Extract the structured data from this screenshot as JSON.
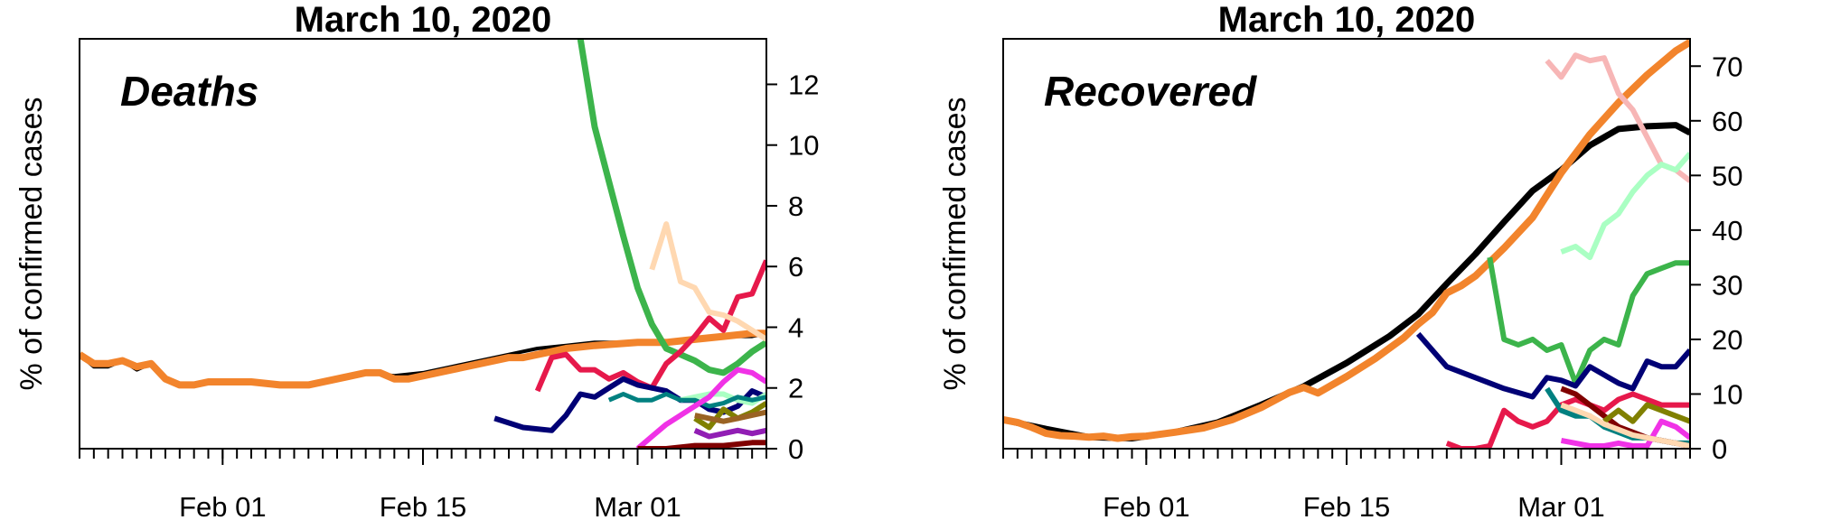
{
  "chart_data": [
    {
      "type": "line",
      "title": "March 10, 2020",
      "panel_label": "Deaths",
      "ylabel": "% of confirmed cases",
      "xlim": [
        "2020-01-22",
        "2020-03-10"
      ],
      "ylim": [
        0,
        13.5
      ],
      "y_ticks": [
        0,
        2,
        4,
        6,
        8,
        10,
        12
      ],
      "y_axis_side": "right",
      "x_tick_labels": [
        {
          "date": "2020-02-01",
          "label": "Feb 01"
        },
        {
          "date": "2020-02-15",
          "label": "Feb 15"
        },
        {
          "date": "2020-03-01",
          "label": "Mar 01"
        }
      ],
      "x_minor_ticks": "daily",
      "grid": false,
      "series": [
        {
          "color": "#000000",
          "width": 4,
          "x": [
            "2020-01-22",
            "2020-01-23",
            "2020-01-24",
            "2020-01-25",
            "2020-01-26",
            "2020-01-27",
            "2020-01-28",
            "2020-01-29",
            "2020-01-30",
            "2020-01-31",
            "2020-02-01",
            "2020-02-03",
            "2020-02-05",
            "2020-02-07",
            "2020-02-09",
            "2020-02-11",
            "2020-02-13",
            "2020-02-15",
            "2020-02-17",
            "2020-02-19",
            "2020-02-21",
            "2020-02-23",
            "2020-02-25",
            "2020-02-27",
            "2020-03-01",
            "2020-03-03",
            "2020-03-05",
            "2020-03-07",
            "2020-03-09",
            "2020-03-10"
          ],
          "y": [
            3.1,
            2.7,
            2.7,
            2.9,
            2.6,
            2.8,
            2.3,
            2.1,
            2.1,
            2.2,
            2.2,
            2.2,
            2.1,
            2.1,
            2.3,
            2.5,
            2.4,
            2.5,
            2.7,
            2.9,
            3.1,
            3.3,
            3.4,
            3.5,
            3.5,
            3.5,
            3.6,
            3.7,
            3.7,
            3.8
          ]
        },
        {
          "color": "#f2842c",
          "width": 8,
          "x": [
            "2020-01-22",
            "2020-01-23",
            "2020-01-24",
            "2020-01-25",
            "2020-01-26",
            "2020-01-27",
            "2020-01-28",
            "2020-01-29",
            "2020-01-30",
            "2020-01-31",
            "2020-02-01",
            "2020-02-03",
            "2020-02-05",
            "2020-02-07",
            "2020-02-09",
            "2020-02-11",
            "2020-02-12",
            "2020-02-13",
            "2020-02-14",
            "2020-02-15",
            "2020-02-17",
            "2020-02-19",
            "2020-02-21",
            "2020-02-22",
            "2020-02-23",
            "2020-02-24",
            "2020-02-25",
            "2020-02-27",
            "2020-03-01",
            "2020-03-03",
            "2020-03-05",
            "2020-03-07",
            "2020-03-09",
            "2020-03-10"
          ],
          "y": [
            3.1,
            2.8,
            2.8,
            2.9,
            2.7,
            2.8,
            2.3,
            2.1,
            2.1,
            2.2,
            2.2,
            2.2,
            2.1,
            2.1,
            2.3,
            2.5,
            2.5,
            2.3,
            2.3,
            2.4,
            2.6,
            2.8,
            3.0,
            3.0,
            3.1,
            3.2,
            3.3,
            3.4,
            3.5,
            3.5,
            3.6,
            3.7,
            3.8,
            3.8
          ]
        },
        {
          "color": "#3cb44b",
          "width": 7,
          "x": [
            "2020-02-26",
            "2020-02-27",
            "2020-02-28",
            "2020-02-29",
            "2020-03-01",
            "2020-03-02",
            "2020-03-03",
            "2020-03-04",
            "2020-03-05",
            "2020-03-06",
            "2020-03-07",
            "2020-03-08",
            "2020-03-09",
            "2020-03-10"
          ],
          "y": [
            13.5,
            10.6,
            8.8,
            7.0,
            5.3,
            4.1,
            3.3,
            3.1,
            2.9,
            2.6,
            2.5,
            2.8,
            3.2,
            3.5
          ]
        },
        {
          "color": "#e6194b",
          "width": 6,
          "x": [
            "2020-02-23",
            "2020-02-24",
            "2020-02-25",
            "2020-02-26",
            "2020-02-27",
            "2020-02-28",
            "2020-02-29",
            "2020-03-01",
            "2020-03-02",
            "2020-03-03",
            "2020-03-04",
            "2020-03-05",
            "2020-03-06",
            "2020-03-07",
            "2020-03-08",
            "2020-03-09",
            "2020-03-10"
          ],
          "y": [
            1.9,
            3.0,
            3.1,
            2.6,
            2.6,
            2.3,
            2.5,
            2.2,
            2.0,
            2.8,
            3.2,
            3.7,
            4.3,
            3.9,
            5.0,
            5.1,
            6.2
          ]
        },
        {
          "color": "#000075",
          "width": 6,
          "x": [
            "2020-02-20",
            "2020-02-22",
            "2020-02-24",
            "2020-02-25",
            "2020-02-26",
            "2020-02-27",
            "2020-02-28",
            "2020-02-29",
            "2020-03-01",
            "2020-03-02",
            "2020-03-03",
            "2020-03-04",
            "2020-03-05",
            "2020-03-06",
            "2020-03-07",
            "2020-03-08",
            "2020-03-09",
            "2020-03-10"
          ],
          "y": [
            1.0,
            0.7,
            0.6,
            1.1,
            1.8,
            1.7,
            2.0,
            2.3,
            2.1,
            2.0,
            1.9,
            1.6,
            1.6,
            1.3,
            1.2,
            1.4,
            1.9,
            1.7
          ]
        },
        {
          "color": "#ffd8b1",
          "width": 6,
          "x": [
            "2020-03-02",
            "2020-03-03",
            "2020-03-04",
            "2020-03-05",
            "2020-03-06",
            "2020-03-07",
            "2020-03-08",
            "2020-03-09",
            "2020-03-10"
          ],
          "y": [
            5.9,
            7.4,
            5.5,
            5.3,
            4.5,
            4.4,
            4.2,
            3.9,
            3.6
          ]
        },
        {
          "color": "#aaffc3",
          "width": 6,
          "x": [
            "2020-03-04",
            "2020-03-05",
            "2020-03-06",
            "2020-03-07",
            "2020-03-08",
            "2020-03-09",
            "2020-03-10"
          ],
          "y": [
            1.6,
            1.7,
            1.8,
            1.8,
            1.6,
            1.5,
            1.8
          ]
        },
        {
          "color": "#008080",
          "width": 5,
          "x": [
            "2020-02-28",
            "2020-02-29",
            "2020-03-01",
            "2020-03-02",
            "2020-03-03",
            "2020-03-04",
            "2020-03-05",
            "2020-03-06",
            "2020-03-07",
            "2020-03-08",
            "2020-03-09",
            "2020-03-10"
          ],
          "y": [
            1.6,
            1.8,
            1.6,
            1.6,
            1.8,
            1.6,
            1.6,
            1.4,
            1.5,
            1.7,
            1.6,
            1.7
          ]
        },
        {
          "color": "#f032e6",
          "width": 6,
          "x": [
            "2020-03-01",
            "2020-03-02",
            "2020-03-03",
            "2020-03-04",
            "2020-03-05",
            "2020-03-06",
            "2020-03-07",
            "2020-03-08",
            "2020-03-09",
            "2020-03-10"
          ],
          "y": [
            0.0,
            0.4,
            0.8,
            1.1,
            1.4,
            1.7,
            2.2,
            2.6,
            2.5,
            2.2
          ]
        },
        {
          "color": "#808000",
          "width": 6,
          "x": [
            "2020-03-05",
            "2020-03-06",
            "2020-03-07",
            "2020-03-08",
            "2020-03-09",
            "2020-03-10"
          ],
          "y": [
            1.0,
            0.7,
            1.3,
            1.0,
            1.2,
            1.5
          ]
        },
        {
          "color": "#911eb4",
          "width": 6,
          "x": [
            "2020-03-05",
            "2020-03-06",
            "2020-03-07",
            "2020-03-08",
            "2020-03-09",
            "2020-03-10"
          ],
          "y": [
            0.6,
            0.4,
            0.5,
            0.6,
            0.5,
            0.6
          ]
        },
        {
          "color": "#9a6324",
          "width": 6,
          "x": [
            "2020-03-05",
            "2020-03-06",
            "2020-03-07",
            "2020-03-08",
            "2020-03-09",
            "2020-03-10"
          ],
          "y": [
            1.1,
            1.0,
            0.9,
            1.0,
            1.1,
            1.2
          ]
        },
        {
          "color": "#800000",
          "width": 6,
          "x": [
            "2020-03-01",
            "2020-03-03",
            "2020-03-05",
            "2020-03-07",
            "2020-03-09",
            "2020-03-10"
          ],
          "y": [
            0.0,
            0.0,
            0.1,
            0.1,
            0.2,
            0.2
          ]
        }
      ]
    },
    {
      "type": "line",
      "title": "March 10, 2020",
      "panel_label": "Recovered",
      "ylabel": "% of confirmed cases",
      "xlim": [
        "2020-01-22",
        "2020-03-10"
      ],
      "ylim": [
        0,
        75
      ],
      "y_ticks": [
        0,
        10,
        20,
        30,
        40,
        50,
        60,
        70
      ],
      "y_axis_side": "right",
      "x_tick_labels": [
        {
          "date": "2020-02-01",
          "label": "Feb 01"
        },
        {
          "date": "2020-02-15",
          "label": "Feb 15"
        },
        {
          "date": "2020-03-01",
          "label": "Mar 01"
        }
      ],
      "x_minor_ticks": "daily",
      "grid": false,
      "series": [
        {
          "color": "#000000",
          "width": 7,
          "x": [
            "2020-01-22",
            "2020-01-25",
            "2020-01-28",
            "2020-01-31",
            "2020-02-03",
            "2020-02-06",
            "2020-02-09",
            "2020-02-12",
            "2020-02-15",
            "2020-02-18",
            "2020-02-20",
            "2020-02-22",
            "2020-02-24",
            "2020-02-26",
            "2020-02-28",
            "2020-03-01",
            "2020-03-03",
            "2020-03-05",
            "2020-03-07",
            "2020-03-09",
            "2020-03-10"
          ],
          "y": [
            5.3,
            3.6,
            2.1,
            1.9,
            3.0,
            4.8,
            8.0,
            11.4,
            15.7,
            20.6,
            24.6,
            30.2,
            35.6,
            41.5,
            47.2,
            51.0,
            55.5,
            58.5,
            59.0,
            59.2,
            57.8
          ]
        },
        {
          "color": "#f2842c",
          "width": 8,
          "x": [
            "2020-01-22",
            "2020-01-23",
            "2020-01-24",
            "2020-01-25",
            "2020-01-26",
            "2020-01-27",
            "2020-01-28",
            "2020-01-29",
            "2020-01-30",
            "2020-01-31",
            "2020-02-01",
            "2020-02-03",
            "2020-02-05",
            "2020-02-07",
            "2020-02-09",
            "2020-02-11",
            "2020-02-12",
            "2020-02-13",
            "2020-02-15",
            "2020-02-17",
            "2020-02-19",
            "2020-02-20",
            "2020-02-21",
            "2020-02-22",
            "2020-02-23",
            "2020-02-24",
            "2020-02-26",
            "2020-02-28",
            "2020-03-01",
            "2020-03-03",
            "2020-03-05",
            "2020-03-07",
            "2020-03-09",
            "2020-03-10"
          ],
          "y": [
            5.3,
            4.8,
            3.9,
            2.8,
            2.4,
            2.3,
            2.1,
            2.3,
            1.9,
            2.2,
            2.3,
            3.0,
            3.8,
            5.3,
            7.5,
            10.3,
            11.2,
            10.2,
            13.2,
            16.5,
            20.3,
            22.8,
            24.9,
            28.5,
            29.8,
            31.6,
            36.7,
            42.3,
            50.5,
            57.5,
            63.3,
            68.4,
            72.8,
            74.4
          ]
        },
        {
          "color": "#f7b6b6",
          "width": 6,
          "x": [
            "2020-02-29",
            "2020-03-01",
            "2020-03-02",
            "2020-03-03",
            "2020-03-04",
            "2020-03-05",
            "2020-03-06",
            "2020-03-07",
            "2020-03-08",
            "2020-03-09",
            "2020-03-10"
          ],
          "y": [
            71.0,
            68.0,
            72.0,
            71.0,
            71.5,
            65.0,
            62.0,
            57.0,
            52.0,
            51.0,
            49.0
          ]
        },
        {
          "color": "#aaffc3",
          "width": 6,
          "x": [
            "2020-03-01",
            "2020-03-02",
            "2020-03-03",
            "2020-03-04",
            "2020-03-05",
            "2020-03-06",
            "2020-03-07",
            "2020-03-08",
            "2020-03-09",
            "2020-03-10"
          ],
          "y": [
            36.0,
            37.0,
            35.0,
            41.0,
            43.0,
            47.0,
            50.0,
            52.0,
            51.0,
            54.0
          ]
        },
        {
          "color": "#3cb44b",
          "width": 6,
          "x": [
            "2020-02-25",
            "2020-02-26",
            "2020-02-27",
            "2020-02-28",
            "2020-02-29",
            "2020-03-01",
            "2020-03-02",
            "2020-03-03",
            "2020-03-04",
            "2020-03-05",
            "2020-03-06",
            "2020-03-07",
            "2020-03-08",
            "2020-03-09",
            "2020-03-10"
          ],
          "y": [
            35.0,
            20.0,
            19.0,
            20.0,
            18.0,
            19.0,
            12.0,
            18.0,
            20.0,
            19.0,
            28.0,
            32.0,
            33.0,
            34.0,
            34.0
          ]
        },
        {
          "color": "#000075",
          "width": 6,
          "x": [
            "2020-02-20",
            "2020-02-22",
            "2020-02-24",
            "2020-02-26",
            "2020-02-28",
            "2020-02-29",
            "2020-03-01",
            "2020-03-02",
            "2020-03-03",
            "2020-03-04",
            "2020-03-05",
            "2020-03-06",
            "2020-03-07",
            "2020-03-08",
            "2020-03-09",
            "2020-03-10"
          ],
          "y": [
            21.0,
            15.0,
            13.0,
            11.0,
            9.5,
            13.0,
            12.5,
            11.5,
            15.0,
            13.5,
            12.0,
            11.0,
            16.0,
            15.0,
            15.0,
            18.0
          ]
        },
        {
          "color": "#e6194b",
          "width": 6,
          "x": [
            "2020-02-22",
            "2020-02-23",
            "2020-02-24",
            "2020-02-25",
            "2020-02-26",
            "2020-02-27",
            "2020-02-28",
            "2020-02-29",
            "2020-03-01",
            "2020-03-02",
            "2020-03-03",
            "2020-03-04",
            "2020-03-05",
            "2020-03-06",
            "2020-03-07",
            "2020-03-08",
            "2020-03-09",
            "2020-03-10"
          ],
          "y": [
            1.0,
            0.0,
            0.0,
            0.5,
            7.0,
            5.0,
            4.0,
            5.0,
            8.0,
            9.0,
            8.0,
            7.0,
            9.0,
            10.0,
            9.0,
            8.0,
            8.0,
            8.0
          ]
        },
        {
          "color": "#008080",
          "width": 6,
          "x": [
            "2020-02-29",
            "2020-03-01",
            "2020-03-02",
            "2020-03-03",
            "2020-03-04",
            "2020-03-05",
            "2020-03-06",
            "2020-03-07",
            "2020-03-08",
            "2020-03-09",
            "2020-03-10"
          ],
          "y": [
            11.0,
            7.0,
            6.0,
            6.0,
            4.0,
            3.0,
            2.0,
            2.0,
            1.5,
            1.0,
            1.0
          ]
        },
        {
          "color": "#800000",
          "width": 6,
          "x": [
            "2020-03-01",
            "2020-03-02",
            "2020-03-03",
            "2020-03-04",
            "2020-03-05",
            "2020-03-06",
            "2020-03-07",
            "2020-03-08",
            "2020-03-09",
            "2020-03-10"
          ],
          "y": [
            11.0,
            10.0,
            8.0,
            6.0,
            4.0,
            3.0,
            2.0,
            1.5,
            1.0,
            0.5
          ]
        },
        {
          "color": "#808000",
          "width": 6,
          "x": [
            "2020-03-04",
            "2020-03-05",
            "2020-03-06",
            "2020-03-07",
            "2020-03-08",
            "2020-03-09",
            "2020-03-10"
          ],
          "y": [
            5.0,
            7.0,
            5.0,
            8.0,
            7.0,
            6.0,
            5.0
          ]
        },
        {
          "color": "#f032e6",
          "width": 6,
          "x": [
            "2020-03-01",
            "2020-03-02",
            "2020-03-03",
            "2020-03-04",
            "2020-03-05",
            "2020-03-06",
            "2020-03-07",
            "2020-03-08",
            "2020-03-09",
            "2020-03-10"
          ],
          "y": [
            1.5,
            1.0,
            0.5,
            0.5,
            1.0,
            0.5,
            0.5,
            5.0,
            4.0,
            2.0
          ]
        },
        {
          "color": "#ffd8b1",
          "width": 6,
          "x": [
            "2020-03-01",
            "2020-03-02",
            "2020-03-03",
            "2020-03-04",
            "2020-03-05",
            "2020-03-06",
            "2020-03-07",
            "2020-03-08",
            "2020-03-09",
            "2020-03-10"
          ],
          "y": [
            8.0,
            7.0,
            6.0,
            4.5,
            3.5,
            2.5,
            2.0,
            1.5,
            1.0,
            0.5
          ]
        }
      ]
    }
  ]
}
